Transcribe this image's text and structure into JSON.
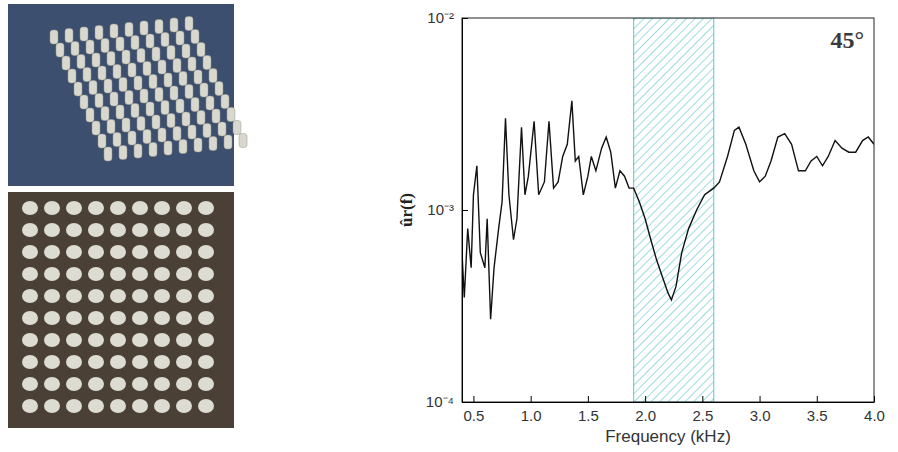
{
  "chart_data": {
    "type": "line",
    "annotation": "45°",
    "x_label": "Frequency (kHz)",
    "y_label": "ûr(f)",
    "log": "y",
    "color": "#111111",
    "xlim": [
      0.4,
      4.0
    ],
    "xticks": [
      0.5,
      {
        "value": 1,
        "label": "1.0"
      },
      1.5,
      {
        "value": 2,
        "label": "2.0"
      },
      2.5,
      {
        "value": 3,
        "label": "3.0"
      },
      3.5,
      {
        "value": 4,
        "label": "4.0"
      }
    ],
    "ylim": [
      0.0001,
      0.01
    ],
    "yticks": [
      {
        "value": 0.0001,
        "label": "10⁻⁴"
      },
      {
        "value": 0.001,
        "label": "10⁻³"
      },
      {
        "value": 0.01,
        "label": "10⁻²"
      }
    ],
    "band": [
      1.9,
      2.6
    ],
    "x": [
      0.4,
      0.42,
      0.45,
      0.48,
      0.5,
      0.53,
      0.56,
      0.6,
      0.62,
      0.65,
      0.68,
      0.72,
      0.75,
      0.78,
      0.81,
      0.85,
      0.88,
      0.92,
      0.95,
      0.98,
      1.03,
      1.07,
      1.12,
      1.16,
      1.2,
      1.24,
      1.28,
      1.32,
      1.36,
      1.39,
      1.42,
      1.46,
      1.5,
      1.53,
      1.57,
      1.62,
      1.66,
      1.7,
      1.74,
      1.78,
      1.82,
      1.86,
      1.9,
      1.95,
      2.0,
      2.05,
      2.1,
      2.15,
      2.2,
      2.23,
      2.27,
      2.32,
      2.38,
      2.45,
      2.52,
      2.6,
      2.65,
      2.72,
      2.78,
      2.82,
      2.88,
      2.95,
      3.0,
      3.05,
      3.1,
      3.16,
      3.22,
      3.28,
      3.34,
      3.4,
      3.45,
      3.5,
      3.55,
      3.6,
      3.66,
      3.72,
      3.78,
      3.84,
      3.9,
      3.95,
      4.0
    ],
    "values": [
      0.0006,
      0.00035,
      0.0008,
      0.0005,
      0.0012,
      0.0017,
      0.0006,
      0.0005,
      0.0009,
      0.00027,
      0.0005,
      0.0008,
      0.0011,
      0.003,
      0.0012,
      0.0007,
      0.0009,
      0.0027,
      0.0012,
      0.0015,
      0.0029,
      0.0012,
      0.0014,
      0.0029,
      0.0013,
      0.0014,
      0.0019,
      0.0022,
      0.0037,
      0.0018,
      0.0019,
      0.0012,
      0.0015,
      0.0019,
      0.0016,
      0.0021,
      0.0024,
      0.002,
      0.0013,
      0.0016,
      0.0015,
      0.0013,
      0.0013,
      0.0011,
      0.0009,
      0.0007,
      0.00055,
      0.00045,
      0.00037,
      0.00034,
      0.0004,
      0.0006,
      0.0008,
      0.001,
      0.0012,
      0.0013,
      0.0014,
      0.0019,
      0.0026,
      0.0027,
      0.0022,
      0.0016,
      0.0014,
      0.0015,
      0.0018,
      0.0024,
      0.0025,
      0.0022,
      0.0016,
      0.0016,
      0.0018,
      0.0019,
      0.0017,
      0.0019,
      0.0023,
      0.0021,
      0.002,
      0.002,
      0.0023,
      0.0024,
      0.0022
    ]
  }
}
